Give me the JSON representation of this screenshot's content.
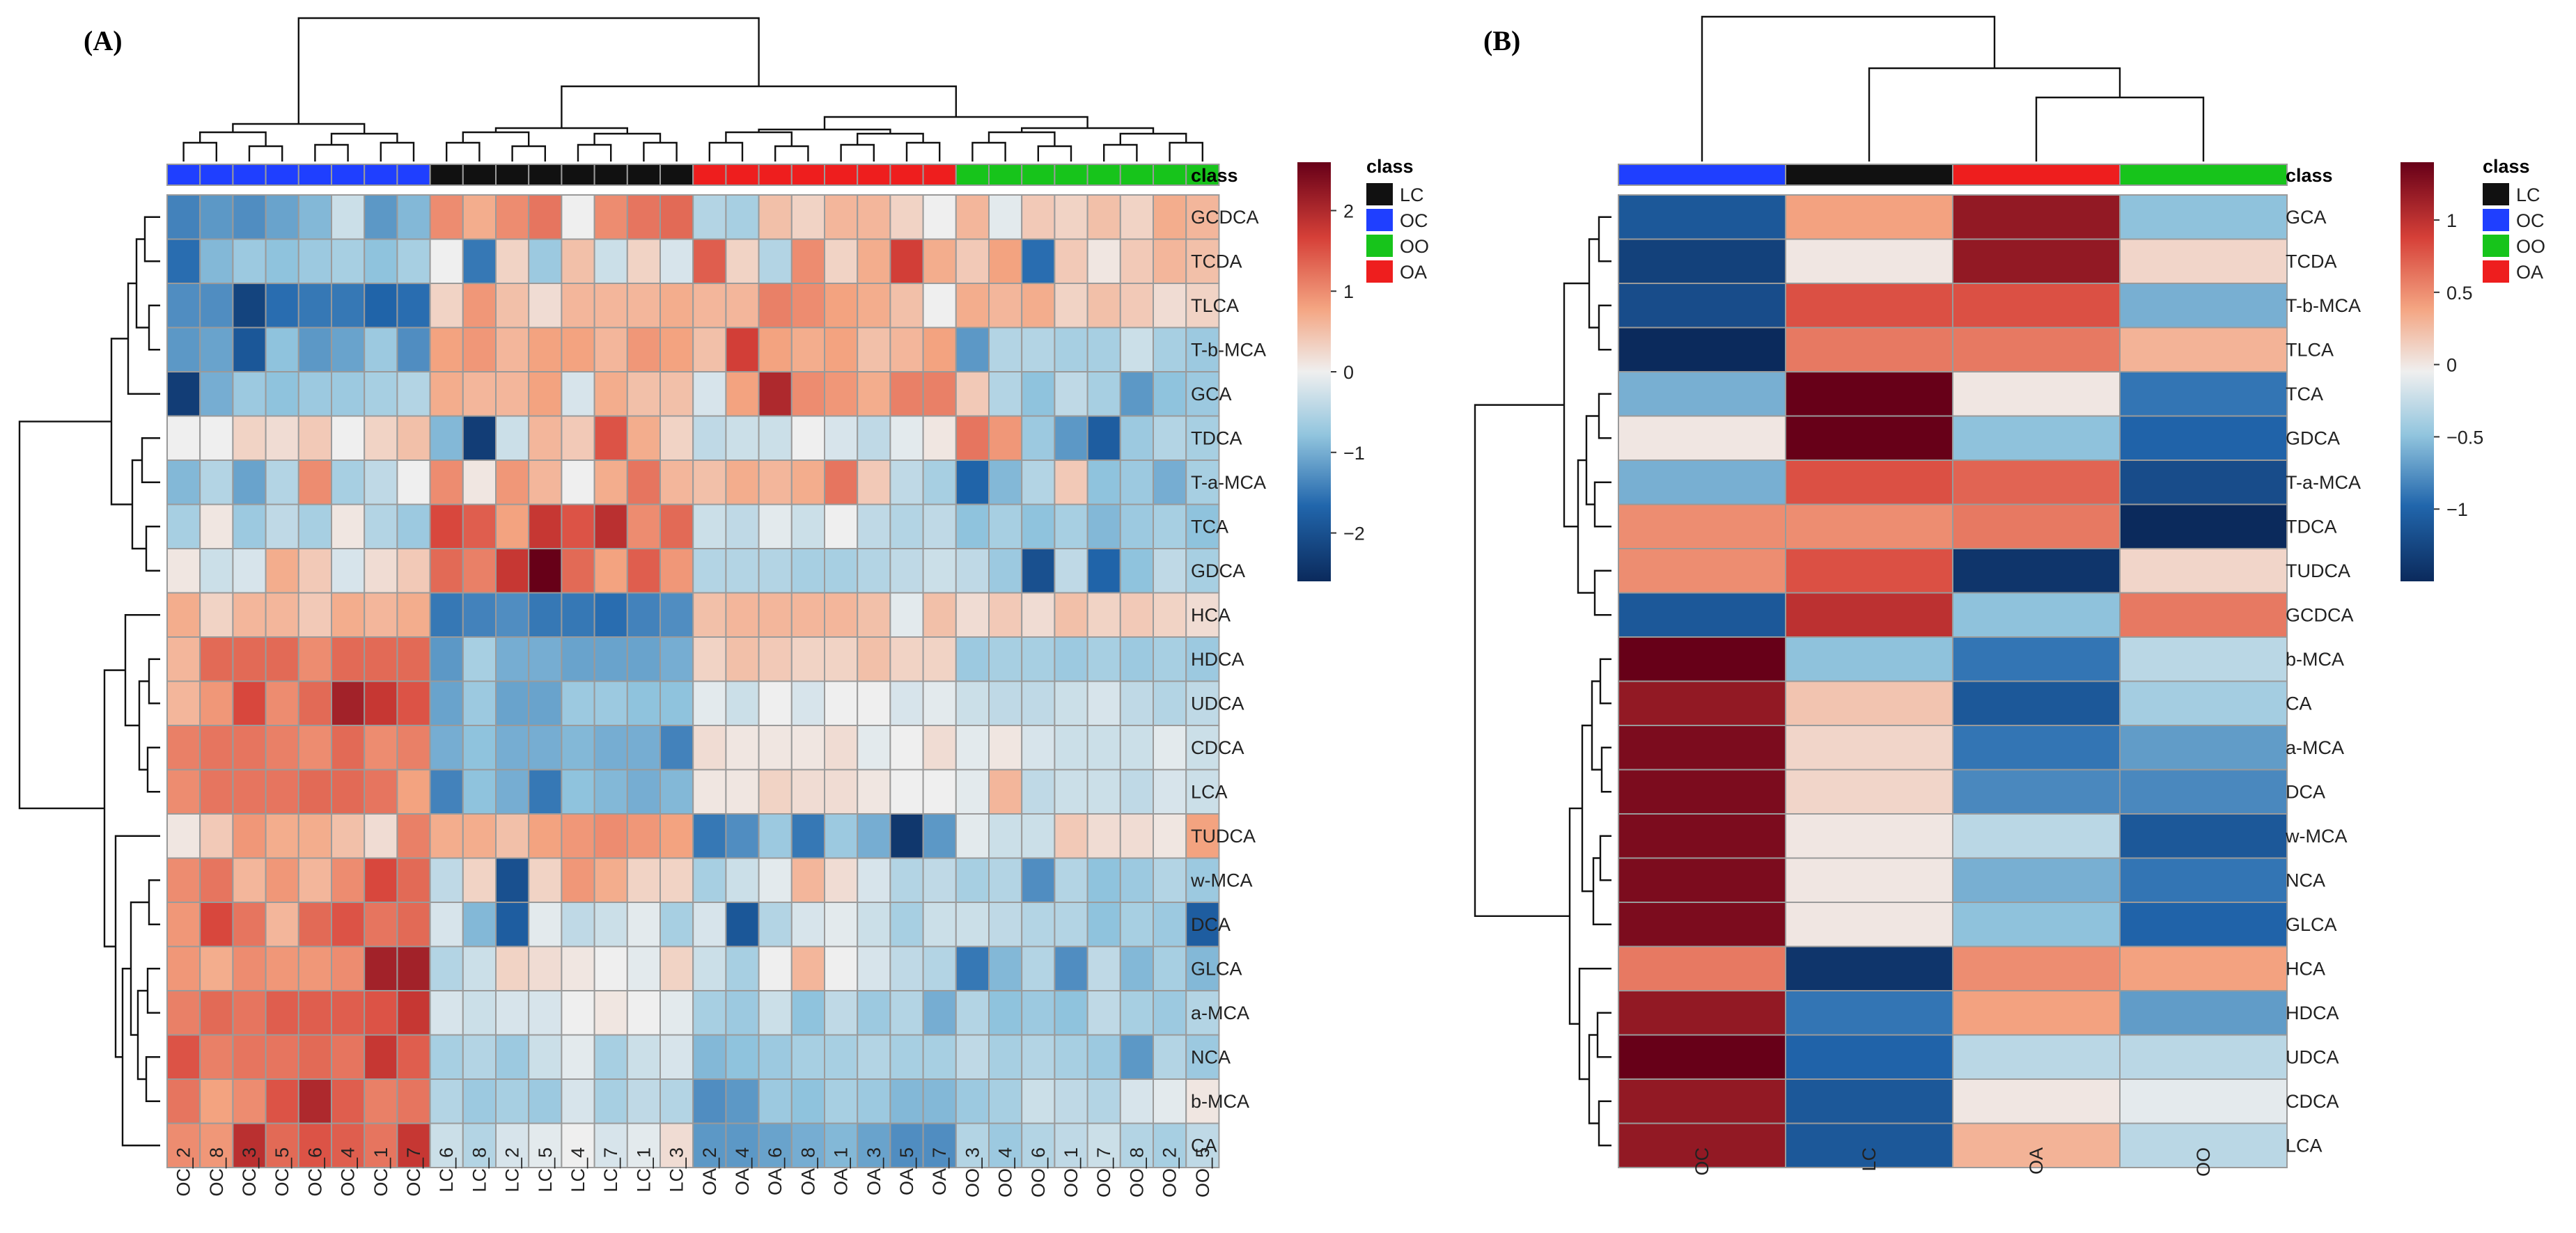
{
  "chart_data": [
    {
      "type": "heatmap",
      "panel_label": "(A)",
      "class_header": "class",
      "columns": [
        "OC_2",
        "OC_8",
        "OC_3",
        "OC_5",
        "OC_6",
        "OC_4",
        "OC_1",
        "OC_7",
        "LC_6",
        "LC_8",
        "LC_2",
        "LC_5",
        "LC_4",
        "LC_7",
        "LC_1",
        "LC_3",
        "OA_2",
        "OA_4",
        "OA_6",
        "OA_8",
        "OA_1",
        "OA_3",
        "OA_5",
        "OA_7",
        "OO_3",
        "OO_4",
        "OO_6",
        "OO_1",
        "OO_7",
        "OO_8",
        "OO_2",
        "OO_5"
      ],
      "column_classes": [
        "OC",
        "OC",
        "OC",
        "OC",
        "OC",
        "OC",
        "OC",
        "OC",
        "LC",
        "LC",
        "LC",
        "LC",
        "LC",
        "LC",
        "LC",
        "LC",
        "OA",
        "OA",
        "OA",
        "OA",
        "OA",
        "OA",
        "OA",
        "OA",
        "OO",
        "OO",
        "OO",
        "OO",
        "OO",
        "OO",
        "OO",
        "OO"
      ],
      "rows": [
        "GCDCA",
        "TCDA",
        "TLCA",
        "T-b-MCA",
        "GCA",
        "TDCA",
        "T-a-MCA",
        "TCA",
        "GDCA",
        "HCA",
        "HDCA",
        "UDCA",
        "CDCA",
        "LCA",
        "TUDCA",
        "w-MCA",
        "DCA",
        "GLCA",
        "a-MCA",
        "NCA",
        "b-MCA",
        "CA"
      ],
      "values": [
        [
          -1.4,
          -1.2,
          -1.3,
          -1.1,
          -0.9,
          -0.3,
          -1.2,
          -0.9,
          1.0,
          0.7,
          1.0,
          1.2,
          0.0,
          1.0,
          1.2,
          1.3,
          -0.5,
          -0.6,
          0.5,
          0.3,
          0.6,
          0.6,
          0.3,
          0.0,
          0.6,
          -0.1,
          0.4,
          0.3,
          0.5,
          0.3,
          0.7,
          0.6
        ],
        [
          -1.6,
          -0.9,
          -0.7,
          -0.8,
          -0.7,
          -0.6,
          -0.8,
          -0.6,
          0.0,
          -1.5,
          0.3,
          -0.7,
          0.5,
          -0.3,
          0.3,
          -0.2,
          1.4,
          0.3,
          -0.5,
          1.0,
          0.3,
          0.7,
          1.7,
          0.7,
          0.4,
          0.8,
          -1.6,
          0.4,
          0.1,
          0.4,
          0.6,
          0.5
        ],
        [
          -1.3,
          -1.3,
          -2.2,
          -1.6,
          -1.5,
          -1.5,
          -1.7,
          -1.6,
          0.3,
          0.9,
          0.5,
          0.2,
          0.6,
          0.6,
          0.6,
          0.7,
          0.6,
          0.6,
          1.1,
          1.0,
          0.8,
          0.7,
          0.5,
          0.0,
          0.7,
          0.6,
          0.7,
          0.3,
          0.5,
          0.4,
          0.2,
          0.3
        ],
        [
          -1.2,
          -1.1,
          -1.9,
          -0.8,
          -1.2,
          -1.1,
          -0.7,
          -1.3,
          0.8,
          0.9,
          0.6,
          0.8,
          0.8,
          0.6,
          0.9,
          0.8,
          0.5,
          1.7,
          0.8,
          0.7,
          0.8,
          0.5,
          0.6,
          0.8,
          -1.2,
          -0.5,
          -0.5,
          -0.6,
          -0.6,
          -0.3,
          -0.6,
          -0.7
        ],
        [
          -2.3,
          -1.0,
          -0.7,
          -0.8,
          -0.7,
          -0.7,
          -0.6,
          -0.5,
          0.7,
          0.6,
          0.6,
          0.8,
          -0.2,
          0.7,
          0.5,
          0.5,
          -0.2,
          0.8,
          2.0,
          1.0,
          0.9,
          0.7,
          1.1,
          1.1,
          0.4,
          -0.5,
          -0.8,
          -0.4,
          -0.6,
          -1.2,
          -0.8,
          -0.7
        ],
        [
          0.0,
          0.0,
          0.3,
          0.2,
          0.4,
          0.0,
          0.3,
          0.5,
          -0.9,
          -2.3,
          -0.3,
          0.6,
          0.4,
          1.5,
          0.7,
          0.3,
          -0.4,
          -0.3,
          -0.3,
          0.0,
          -0.2,
          -0.4,
          -0.1,
          0.1,
          1.2,
          0.9,
          -0.7,
          -1.2,
          -1.8,
          -0.7,
          -0.5,
          -0.6
        ],
        [
          -0.9,
          -0.5,
          -1.1,
          -0.5,
          1.0,
          -0.6,
          -0.4,
          0.0,
          1.0,
          0.1,
          0.9,
          0.6,
          0.0,
          0.7,
          1.2,
          0.6,
          0.5,
          0.7,
          0.6,
          0.7,
          1.2,
          0.4,
          -0.4,
          -0.6,
          -1.7,
          -0.9,
          -0.5,
          0.4,
          -0.8,
          -0.7,
          -1.0,
          -0.6
        ],
        [
          -0.6,
          0.1,
          -0.7,
          -0.4,
          -0.6,
          0.1,
          -0.5,
          -0.7,
          1.6,
          1.4,
          0.8,
          1.8,
          1.5,
          1.9,
          1.0,
          1.3,
          -0.3,
          -0.4,
          -0.1,
          -0.3,
          0.0,
          -0.4,
          -0.5,
          -0.4,
          -0.8,
          -0.6,
          -0.8,
          -0.6,
          -0.9,
          -0.7,
          -0.6,
          -0.8
        ],
        [
          0.1,
          -0.3,
          -0.2,
          0.7,
          0.4,
          -0.2,
          0.2,
          0.4,
          1.3,
          1.1,
          1.8,
          2.6,
          1.3,
          0.8,
          1.4,
          0.9,
          -0.5,
          -0.5,
          -0.5,
          -0.6,
          -0.6,
          -0.5,
          -0.4,
          -0.3,
          -0.4,
          -0.7,
          -2.0,
          -0.4,
          -1.7,
          -0.8,
          -0.4,
          -0.6
        ],
        [
          0.7,
          0.3,
          0.6,
          0.6,
          0.4,
          0.7,
          0.6,
          0.7,
          -1.5,
          -1.4,
          -1.3,
          -1.5,
          -1.5,
          -1.6,
          -1.4,
          -1.3,
          0.5,
          0.6,
          0.6,
          0.6,
          0.6,
          0.5,
          -0.1,
          0.5,
          0.2,
          0.4,
          0.2,
          0.5,
          0.3,
          0.4,
          0.3,
          0.2
        ],
        [
          0.6,
          1.3,
          1.3,
          1.3,
          1.0,
          1.3,
          1.3,
          1.3,
          -1.2,
          -0.6,
          -1.0,
          -1.0,
          -1.1,
          -1.1,
          -1.1,
          -1.0,
          0.3,
          0.5,
          0.4,
          0.3,
          0.3,
          0.5,
          0.3,
          0.3,
          -0.7,
          -0.6,
          -0.6,
          -0.7,
          -0.6,
          -0.7,
          -0.6,
          -0.7
        ],
        [
          0.6,
          0.9,
          1.6,
          1.0,
          1.3,
          2.1,
          1.8,
          1.5,
          -1.1,
          -0.7,
          -1.1,
          -1.1,
          -0.7,
          -0.7,
          -0.8,
          -0.8,
          -0.1,
          -0.3,
          0.0,
          -0.2,
          0.0,
          0.0,
          -0.2,
          -0.1,
          -0.3,
          -0.4,
          -0.4,
          -0.3,
          -0.2,
          -0.4,
          -0.5,
          -0.4
        ],
        [
          1.1,
          1.2,
          1.2,
          1.1,
          1.0,
          1.3,
          1.0,
          1.1,
          -1.0,
          -0.8,
          -1.0,
          -1.0,
          -0.9,
          -1.0,
          -1.0,
          -1.4,
          0.2,
          0.1,
          0.1,
          0.1,
          0.2,
          -0.1,
          0.0,
          0.2,
          -0.1,
          0.1,
          -0.2,
          -0.3,
          -0.3,
          -0.3,
          -0.1,
          -0.3
        ],
        [
          1.0,
          1.2,
          1.2,
          1.2,
          1.3,
          1.3,
          1.2,
          0.8,
          -1.4,
          -0.8,
          -1.0,
          -1.5,
          -0.8,
          -0.9,
          -1.0,
          -0.9,
          0.1,
          0.1,
          0.3,
          0.2,
          0.2,
          0.1,
          0.0,
          0.0,
          -0.1,
          0.6,
          -0.4,
          -0.3,
          -0.3,
          -0.4,
          -0.2,
          -0.3
        ],
        [
          0.1,
          0.4,
          0.9,
          0.7,
          0.7,
          0.5,
          0.2,
          1.1,
          0.7,
          0.7,
          0.5,
          0.8,
          0.9,
          1.0,
          0.9,
          0.8,
          -1.5,
          -1.3,
          -0.7,
          -1.5,
          -0.7,
          -1.0,
          -2.4,
          -1.2,
          -0.1,
          -0.3,
          -0.3,
          0.4,
          0.2,
          0.2,
          0.1,
          0.8
        ],
        [
          1.0,
          1.2,
          0.6,
          0.9,
          0.6,
          1.0,
          1.6,
          1.3,
          -0.4,
          0.3,
          -2.0,
          0.3,
          0.9,
          0.7,
          0.3,
          0.3,
          -0.6,
          -0.3,
          -0.1,
          0.6,
          0.2,
          -0.2,
          -0.5,
          -0.4,
          -0.6,
          -0.5,
          -1.3,
          -0.5,
          -0.8,
          -0.7,
          -0.5,
          -0.7
        ],
        [
          0.9,
          1.6,
          1.2,
          0.6,
          1.3,
          1.5,
          1.2,
          1.3,
          -0.2,
          -0.9,
          -1.8,
          -0.1,
          -0.4,
          -0.3,
          -0.1,
          -0.6,
          -0.2,
          -1.9,
          -0.5,
          -0.2,
          -0.1,
          -0.3,
          -0.6,
          -0.3,
          -0.3,
          -0.4,
          -0.5,
          -0.5,
          -0.8,
          -0.6,
          -0.7,
          -1.8
        ],
        [
          0.9,
          0.7,
          1.0,
          0.9,
          0.9,
          1.0,
          2.1,
          2.1,
          -0.5,
          -0.3,
          0.3,
          0.2,
          0.1,
          0.0,
          -0.1,
          0.3,
          -0.3,
          -0.6,
          0.0,
          0.6,
          0.0,
          -0.2,
          -0.4,
          -0.5,
          -1.5,
          -0.9,
          -0.5,
          -1.3,
          -0.4,
          -0.9,
          -0.6,
          -0.9
        ],
        [
          1.1,
          1.3,
          1.2,
          1.4,
          1.4,
          1.4,
          1.5,
          1.8,
          -0.2,
          -0.3,
          -0.2,
          -0.2,
          0.0,
          0.1,
          0.0,
          -0.1,
          -0.6,
          -0.7,
          -0.3,
          -0.8,
          -0.4,
          -0.7,
          -0.5,
          -1.0,
          -0.5,
          -0.8,
          -0.7,
          -0.8,
          -0.4,
          -0.6,
          -0.7,
          -0.5
        ],
        [
          1.5,
          1.1,
          1.2,
          1.2,
          1.3,
          1.2,
          1.8,
          1.4,
          -0.6,
          -0.5,
          -0.7,
          -0.3,
          -0.1,
          -0.6,
          -0.3,
          -0.2,
          -0.9,
          -0.8,
          -0.7,
          -0.6,
          -0.6,
          -0.5,
          -0.6,
          -0.6,
          -0.4,
          -0.6,
          -0.5,
          -0.6,
          -0.7,
          -1.2,
          -0.5,
          -0.7
        ],
        [
          1.2,
          0.8,
          1.0,
          1.5,
          2.0,
          1.4,
          1.1,
          1.2,
          -0.5,
          -0.7,
          -0.6,
          -0.7,
          -0.2,
          -0.6,
          -0.4,
          -0.5,
          -1.3,
          -1.2,
          -0.7,
          -0.8,
          -0.6,
          -0.7,
          -0.9,
          -0.9,
          -0.7,
          -0.6,
          -0.3,
          -0.4,
          -0.5,
          -0.2,
          -0.1,
          0.1
        ],
        [
          1.0,
          0.9,
          1.9,
          1.3,
          1.5,
          1.4,
          1.2,
          1.8,
          -0.3,
          -0.5,
          -0.2,
          -0.1,
          0.0,
          -0.2,
          -0.1,
          0.2,
          -1.2,
          -1.2,
          -1.1,
          -1.0,
          -0.9,
          -1.1,
          -1.3,
          -1.3,
          -0.5,
          -0.7,
          -0.5,
          -0.4,
          -0.3,
          -0.5,
          -0.6,
          -0.4
        ]
      ],
      "colorbar": {
        "ticks": [
          2,
          1,
          0,
          -1,
          -2
        ],
        "tick_labels": [
          "2",
          "1",
          "0",
          "−1",
          "−2"
        ],
        "range": [
          -2.6,
          2.6
        ]
      }
    },
    {
      "type": "heatmap",
      "panel_label": "(B)",
      "class_header": "class",
      "columns": [
        "OC",
        "LC",
        "OA",
        "OO"
      ],
      "column_classes": [
        "OC",
        "LC",
        "OA",
        "OO"
      ],
      "rows": [
        "GCA",
        "TCDA",
        "T-b-MCA",
        "TLCA",
        "TCA",
        "GDCA",
        "T-a-MCA",
        "TDCA",
        "TUDCA",
        "GCDCA",
        "b-MCA",
        "CA",
        "a-MCA",
        "DCA",
        "w-MCA",
        "NCA",
        "GLCA",
        "HCA",
        "HDCA",
        "UDCA",
        "CDCA",
        "LCA"
      ],
      "values": [
        [
          -1.1,
          0.4,
          1.2,
          -0.5
        ],
        [
          -1.3,
          0.0,
          1.2,
          0.1
        ],
        [
          -1.2,
          0.8,
          0.8,
          -0.6
        ],
        [
          -1.5,
          0.6,
          0.6,
          0.3
        ],
        [
          -0.6,
          1.4,
          0.0,
          -0.9
        ],
        [
          0.0,
          1.4,
          -0.5,
          -1.0
        ],
        [
          -0.6,
          0.8,
          0.7,
          -1.2
        ],
        [
          0.5,
          0.5,
          0.6,
          -1.5
        ],
        [
          0.5,
          0.8,
          -1.4,
          0.1
        ],
        [
          -1.1,
          1.0,
          -0.5,
          0.6
        ],
        [
          1.4,
          -0.5,
          -0.9,
          -0.3
        ],
        [
          1.2,
          0.2,
          -1.1,
          -0.4
        ],
        [
          1.3,
          0.1,
          -0.9,
          -0.7
        ],
        [
          1.3,
          0.1,
          -0.8,
          -0.8
        ],
        [
          1.3,
          0.0,
          -0.3,
          -1.1
        ],
        [
          1.3,
          0.0,
          -0.6,
          -0.9
        ],
        [
          1.3,
          0.0,
          -0.5,
          -1.0
        ],
        [
          0.6,
          -1.4,
          0.5,
          0.4
        ],
        [
          1.2,
          -0.9,
          0.4,
          -0.7
        ],
        [
          1.4,
          -1.0,
          -0.3,
          -0.3
        ],
        [
          1.2,
          -1.1,
          0.0,
          -0.1
        ],
        [
          1.2,
          -1.1,
          0.3,
          -0.3
        ]
      ],
      "colorbar": {
        "ticks": [
          1,
          0.5,
          0,
          -0.5,
          -1
        ],
        "tick_labels": [
          "1",
          "0.5",
          "0",
          "−0.5",
          "−1"
        ],
        "range": [
          -1.5,
          1.4
        ]
      }
    }
  ],
  "legend": {
    "title": "class",
    "items": [
      {
        "label": "LC",
        "color": "#111111"
      },
      {
        "label": "OC",
        "color": "#1f3fff"
      },
      {
        "label": "OO",
        "color": "#17c41b"
      },
      {
        "label": "OA",
        "color": "#ee1e1e"
      }
    ]
  },
  "colors": {
    "low": "#0b2a5c",
    "mid_low": "#3a75b8",
    "light_low": "#a8cde6",
    "mid": "#efefef",
    "light_high": "#f6b89c",
    "high": "#d23a33",
    "max": "#6b0018",
    "cell_border": "#9a9a9a"
  }
}
